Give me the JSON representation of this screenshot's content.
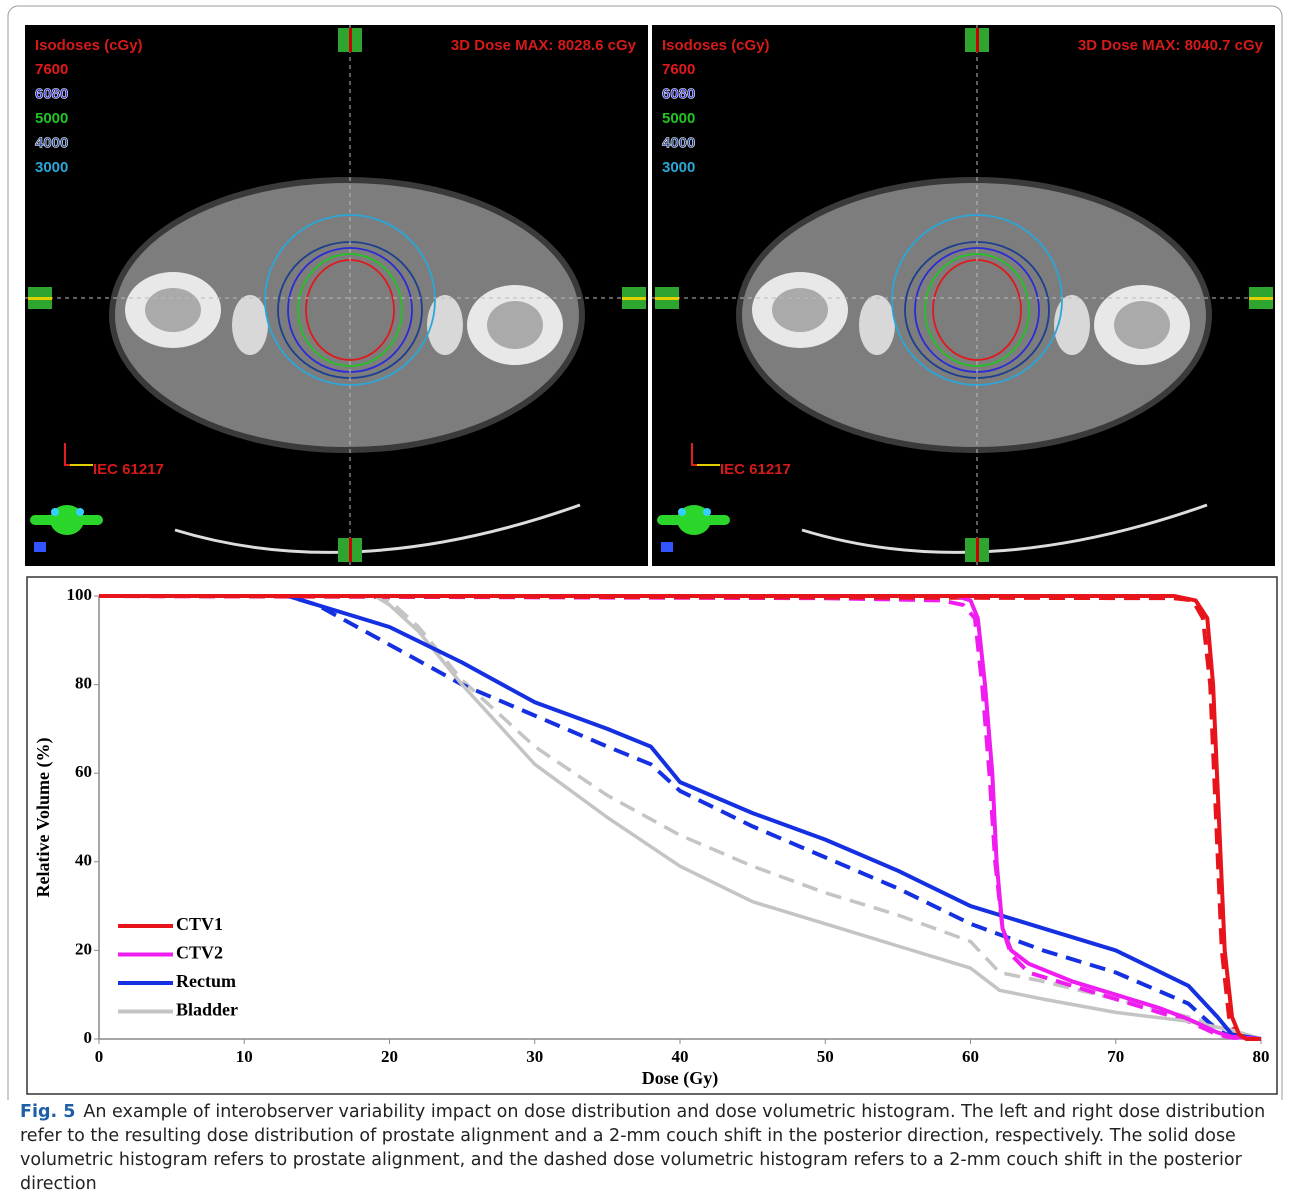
{
  "panels": [
    {
      "iso_title": "Isodoses (cGy)",
      "dose_max": "3D Dose MAX: 8028.6 cGy",
      "iec": "IEC 61217",
      "levels": [
        {
          "label": "7600",
          "color": "#e0191c"
        },
        {
          "label": "6080",
          "color": "#2b2bd6"
        },
        {
          "label": "5000",
          "color": "#22c322"
        },
        {
          "label": "4000",
          "color": "#1d3f8f"
        },
        {
          "label": "3000",
          "color": "#2aa7d8"
        }
      ]
    },
    {
      "iso_title": "Isodoses (cGy)",
      "dose_max": "3D Dose MAX: 8040.7 cGy",
      "iec": "IEC 61217",
      "levels": [
        {
          "label": "7600",
          "color": "#e0191c"
        },
        {
          "label": "6080",
          "color": "#2b2bd6"
        },
        {
          "label": "5000",
          "color": "#22c322"
        },
        {
          "label": "4000",
          "color": "#1d3f8f"
        },
        {
          "label": "3000",
          "color": "#2aa7d8"
        }
      ]
    }
  ],
  "chart_data": {
    "type": "line",
    "x_label": "Dose (Gy)",
    "y_label": "Relative Volume (%)",
    "xlim": [
      0,
      80
    ],
    "ylim": [
      0,
      100
    ],
    "xticks": [
      0,
      10,
      20,
      30,
      40,
      50,
      60,
      70,
      80
    ],
    "yticks": [
      0,
      20,
      40,
      60,
      80,
      100
    ],
    "grid": false,
    "legend": "lower left",
    "series": [
      {
        "name": "CTV1",
        "color": "#e8141b",
        "dash": false,
        "x": [
          0,
          74,
          75.5,
          76.3,
          76.7,
          77.1,
          77.5,
          78,
          78.5,
          79,
          80
        ],
        "values": [
          100,
          100,
          99,
          95,
          80,
          50,
          20,
          5,
          1,
          0,
          0
        ]
      },
      {
        "name": "CTV2",
        "color": "#f01df0",
        "dash": false,
        "x": [
          0,
          59,
          60,
          60.5,
          61,
          61.5,
          61.8,
          62.2,
          62.8,
          64,
          67,
          70,
          73,
          75,
          77,
          78,
          80
        ],
        "values": [
          100,
          100,
          99,
          95,
          80,
          60,
          40,
          25,
          20,
          17,
          13,
          10,
          7,
          4.5,
          1.5,
          0.5,
          0
        ]
      },
      {
        "name": "Rectum",
        "color": "#1530e0",
        "dash": false,
        "x": [
          0,
          13,
          20,
          25,
          30,
          35,
          38,
          40,
          45,
          50,
          55,
          60,
          65,
          70,
          75,
          77,
          78,
          80
        ],
        "values": [
          100,
          100,
          93,
          85,
          76,
          70,
          66,
          58,
          51,
          45,
          38,
          30,
          25,
          20,
          12,
          5,
          1,
          0
        ]
      },
      {
        "name": "Bladder",
        "color": "#c4c4c4",
        "dash": false,
        "x": [
          0,
          19,
          20,
          22,
          25,
          30,
          35,
          40,
          45,
          50,
          55,
          60,
          62,
          65,
          70,
          75,
          78,
          80
        ],
        "values": [
          100,
          100,
          98,
          92,
          80,
          62,
          50,
          39,
          31,
          26,
          21,
          16,
          11,
          9,
          6,
          4,
          2,
          0
        ]
      },
      {
        "color": "#e8141b",
        "dash": true,
        "x": [
          0,
          74,
          75.3,
          76,
          76.5,
          76.9,
          77.3,
          77.8,
          78.3,
          79,
          80
        ],
        "values": [
          100,
          99.5,
          99,
          95,
          80,
          50,
          20,
          5,
          1,
          0,
          0
        ]
      },
      {
        "color": "#f01df0",
        "dash": true,
        "x": [
          0,
          50,
          58,
          59.5,
          60.3,
          60.8,
          61.3,
          61.7,
          62.2,
          62.8,
          64,
          67,
          70,
          73,
          75,
          77,
          78,
          80
        ],
        "values": [
          100,
          99.5,
          99,
          98,
          95,
          80,
          60,
          40,
          25,
          19,
          15,
          12,
          9,
          6,
          4,
          1,
          0.3,
          0
        ]
      },
      {
        "color": "#1530e0",
        "dash": true,
        "x": [
          0,
          13,
          15,
          20,
          25,
          30,
          35,
          38,
          40,
          45,
          50,
          55,
          60,
          65,
          70,
          75,
          77,
          78,
          80
        ],
        "values": [
          100,
          100,
          98,
          89,
          80,
          73,
          66,
          62,
          56,
          48,
          41,
          34,
          26,
          20,
          15,
          8,
          2,
          0.5,
          0
        ]
      },
      {
        "color": "#c4c4c4",
        "dash": true,
        "x": [
          0,
          19,
          20,
          22,
          25,
          30,
          35,
          40,
          45,
          50,
          55,
          60,
          62,
          65,
          70,
          75,
          78,
          80
        ],
        "values": [
          100,
          100,
          99,
          93,
          81,
          66,
          55,
          46,
          39,
          33,
          28,
          22,
          15,
          13,
          9,
          5,
          2,
          0
        ]
      }
    ]
  },
  "caption": {
    "label": "Fig. 5",
    "text": "An example of interobserver variability impact on dose distribution and dose volumetric histogram. The left and right dose distribution refer to the resulting dose distribution of prostate alignment and a 2-mm couch shift in the posterior direction, respectively. The solid dose volumetric histogram refers to prostate alignment, and the dashed dose volumetric histogram refers to a 2-mm couch shift in the posterior direction"
  }
}
